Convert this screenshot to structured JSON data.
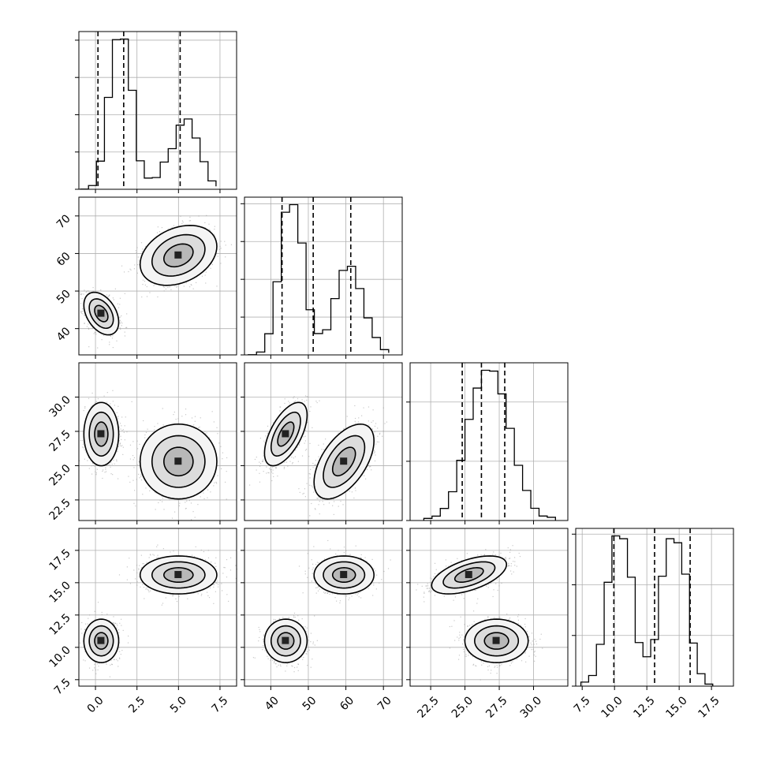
{
  "chart_data": {
    "type": "corner",
    "grid": true,
    "parameters": [
      {
        "range": [
          -1.0,
          8.5
        ],
        "ticks": [
          0.0,
          2.5,
          5.0,
          7.5
        ],
        "tick_labels": [
          "0.0",
          "2.5",
          "5.0",
          "7.5"
        ],
        "quantiles": [
          0.15,
          1.7,
          5.1
        ]
      },
      {
        "range": [
          33,
          75
        ],
        "ticks": [
          40,
          50,
          60,
          70
        ],
        "tick_labels": [
          "40",
          "50",
          "60",
          "70"
        ],
        "quantiles": [
          43.0,
          51.3,
          61.3
        ]
      },
      {
        "range": [
          21,
          32.5
        ],
        "ticks": [
          22.5,
          25.0,
          27.5,
          30.0
        ],
        "tick_labels": [
          "22.5",
          "25.0",
          "27.5",
          "30.0"
        ],
        "quantiles": [
          24.8,
          26.2,
          27.9
        ]
      },
      {
        "range": [
          7.0,
          19.2
        ],
        "ticks": [
          7.5,
          10.0,
          12.5,
          15.0,
          17.5
        ],
        "tick_labels": [
          "7.5",
          "10.0",
          "12.5",
          "15.0",
          "17.5"
        ],
        "quantiles": [
          9.95,
          13.1,
          15.85
        ]
      }
    ],
    "histograms": [
      {
        "bins": [
          -0.9,
          -0.42,
          0.06,
          0.54,
          1.02,
          1.5,
          1.98,
          2.46,
          2.94,
          3.42,
          3.9,
          4.38,
          4.86,
          5.34,
          5.82,
          6.3,
          6.78,
          7.26
        ],
        "counts": [
          1,
          20,
          151,
          493,
          803,
          806,
          531,
          153,
          60,
          63,
          146,
          218,
          344,
          377,
          275,
          148,
          45,
          16
        ]
      },
      {
        "bins": [
          34,
          36.2,
          38.4,
          40.6,
          42.8,
          45,
          47.2,
          49.4,
          51.6,
          53.8,
          56,
          58.2,
          60.4,
          62.6,
          64.8,
          67,
          69.2,
          71.4
        ],
        "counts": [
          1,
          15,
          112,
          387,
          755,
          795,
          592,
          239,
          113,
          133,
          298,
          447,
          469,
          351,
          196,
          92,
          28,
          11
        ]
      },
      {
        "bins": [
          22,
          22.6,
          23.2,
          23.8,
          24.4,
          25,
          25.6,
          26.2,
          26.8,
          27.4,
          28,
          28.6,
          29.2,
          29.8,
          30.4,
          31,
          31.6
        ],
        "counts": [
          18,
          37,
          102,
          243,
          508,
          854,
          1118,
          1268,
          1261,
          1069,
          778,
          466,
          254,
          103,
          38,
          27
        ]
      },
      {
        "bins": [
          7.4,
          8,
          8.6,
          9.2,
          9.8,
          10.4,
          11,
          11.6,
          12.2,
          12.8,
          13.4,
          14,
          14.6,
          15.2,
          15.8,
          16.4,
          17,
          17.6
        ],
        "counts": [
          16,
          42,
          165,
          410,
          593,
          582,
          430,
          172,
          116,
          184,
          434,
          582,
          566,
          442,
          170,
          49,
          8
        ]
      }
    ],
    "clusters": [
      {
        "mean": [
          0.35,
          44.0,
          27.3,
          10.5
        ],
        "sd": [
          0.5,
          2.7,
          1.1,
          0.8
        ],
        "corr": {
          "0-1": -0.4,
          "0-2": 0.0,
          "0-3": 0.0,
          "1-2": 0.6,
          "1-3": 0.0,
          "2-3": 0.0
        }
      },
      {
        "mean": [
          5.0,
          59.5,
          25.3,
          15.6
        ],
        "sd": [
          1.1,
          3.8,
          1.3,
          0.7
        ],
        "corr": {
          "0-1": 0.3,
          "0-2": 0.0,
          "0-3": 0.0,
          "1-2": 0.55,
          "1-3": 0.0,
          "2-3": 0.55
        }
      }
    ]
  }
}
